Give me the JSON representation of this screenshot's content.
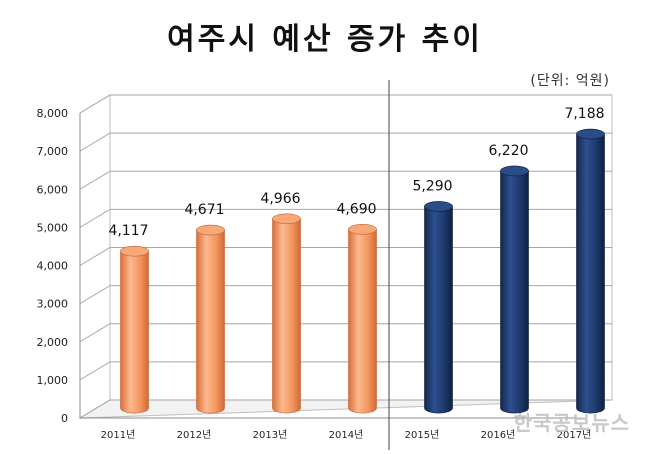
{
  "chart_data": {
    "type": "bar",
    "title": "여주시 예산 증가 추이",
    "unit_label": "(단위: 억원)",
    "categories": [
      "2011년",
      "2012년",
      "2013년",
      "2014년",
      "2015년",
      "2016년",
      "2017년"
    ],
    "values": [
      4117,
      4671,
      4966,
      4690,
      5290,
      6220,
      7188
    ],
    "value_labels": [
      "4,117",
      "4,671",
      "4,966",
      "4,690",
      "5,290",
      "6,220",
      "7,188"
    ],
    "yticks": [
      0,
      1000,
      2000,
      3000,
      4000,
      5000,
      6000,
      7000,
      8000
    ],
    "ytick_labels": [
      "0",
      "1,000",
      "2,000",
      "3,000",
      "4,000",
      "5,000",
      "6,000",
      "7,000",
      "8,000"
    ],
    "ylim": [
      0,
      8000
    ],
    "grid": true,
    "bar_colors": [
      "#f4965f",
      "#f4965f",
      "#f4965f",
      "#f4965f",
      "#1d3a6b",
      "#1d3a6b",
      "#1d3a6b"
    ],
    "divider_after_category": "2014년"
  },
  "watermark": "한국공보뉴스"
}
